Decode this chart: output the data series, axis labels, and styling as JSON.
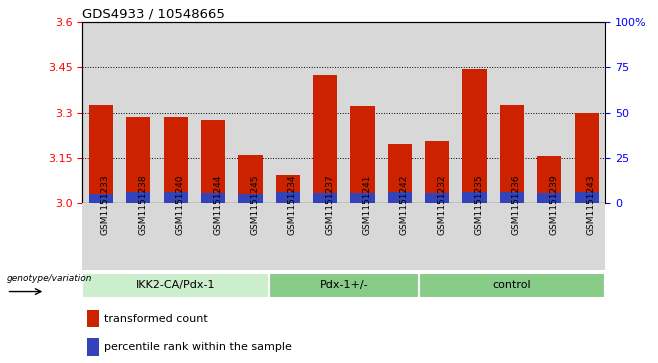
{
  "title": "GDS4933 / 10548665",
  "samples": [
    "GSM1151233",
    "GSM1151238",
    "GSM1151240",
    "GSM1151244",
    "GSM1151245",
    "GSM1151234",
    "GSM1151237",
    "GSM1151241",
    "GSM1151242",
    "GSM1151232",
    "GSM1151235",
    "GSM1151236",
    "GSM1151239",
    "GSM1151243"
  ],
  "red_values": [
    3.325,
    3.285,
    3.285,
    3.275,
    3.16,
    3.095,
    3.425,
    3.32,
    3.195,
    3.205,
    3.445,
    3.325,
    3.155,
    3.3
  ],
  "blue_values": [
    3.03,
    3.038,
    3.038,
    3.035,
    3.032,
    3.038,
    3.035,
    3.035,
    3.038,
    3.035,
    3.038,
    3.038,
    3.035,
    3.038
  ],
  "base": 3.0,
  "ylim": [
    3.0,
    3.6
  ],
  "yticks_left": [
    3.0,
    3.15,
    3.3,
    3.45,
    3.6
  ],
  "yticks_right_vals": [
    0,
    25,
    50,
    75,
    100
  ],
  "yticks_right_labels": [
    "0",
    "25",
    "50",
    "75",
    "100%"
  ],
  "groups": [
    {
      "label": "IKK2-CA/Pdx-1",
      "start": 0,
      "end": 5
    },
    {
      "label": "Pdx-1+/-",
      "start": 5,
      "end": 9
    },
    {
      "label": "control",
      "start": 9,
      "end": 14
    }
  ],
  "group_label_prefix": "genotype/variation",
  "legend_red": "transformed count",
  "legend_blue": "percentile rank within the sample",
  "bar_width": 0.65,
  "red_color": "#cc2200",
  "blue_color": "#3344bb",
  "bg_col_even": "#d8d8d8",
  "bg_col_odd": "#d8d8d8",
  "group1_color": "#cceecc",
  "group2_color": "#88cc88",
  "group3_color": "#88cc88"
}
